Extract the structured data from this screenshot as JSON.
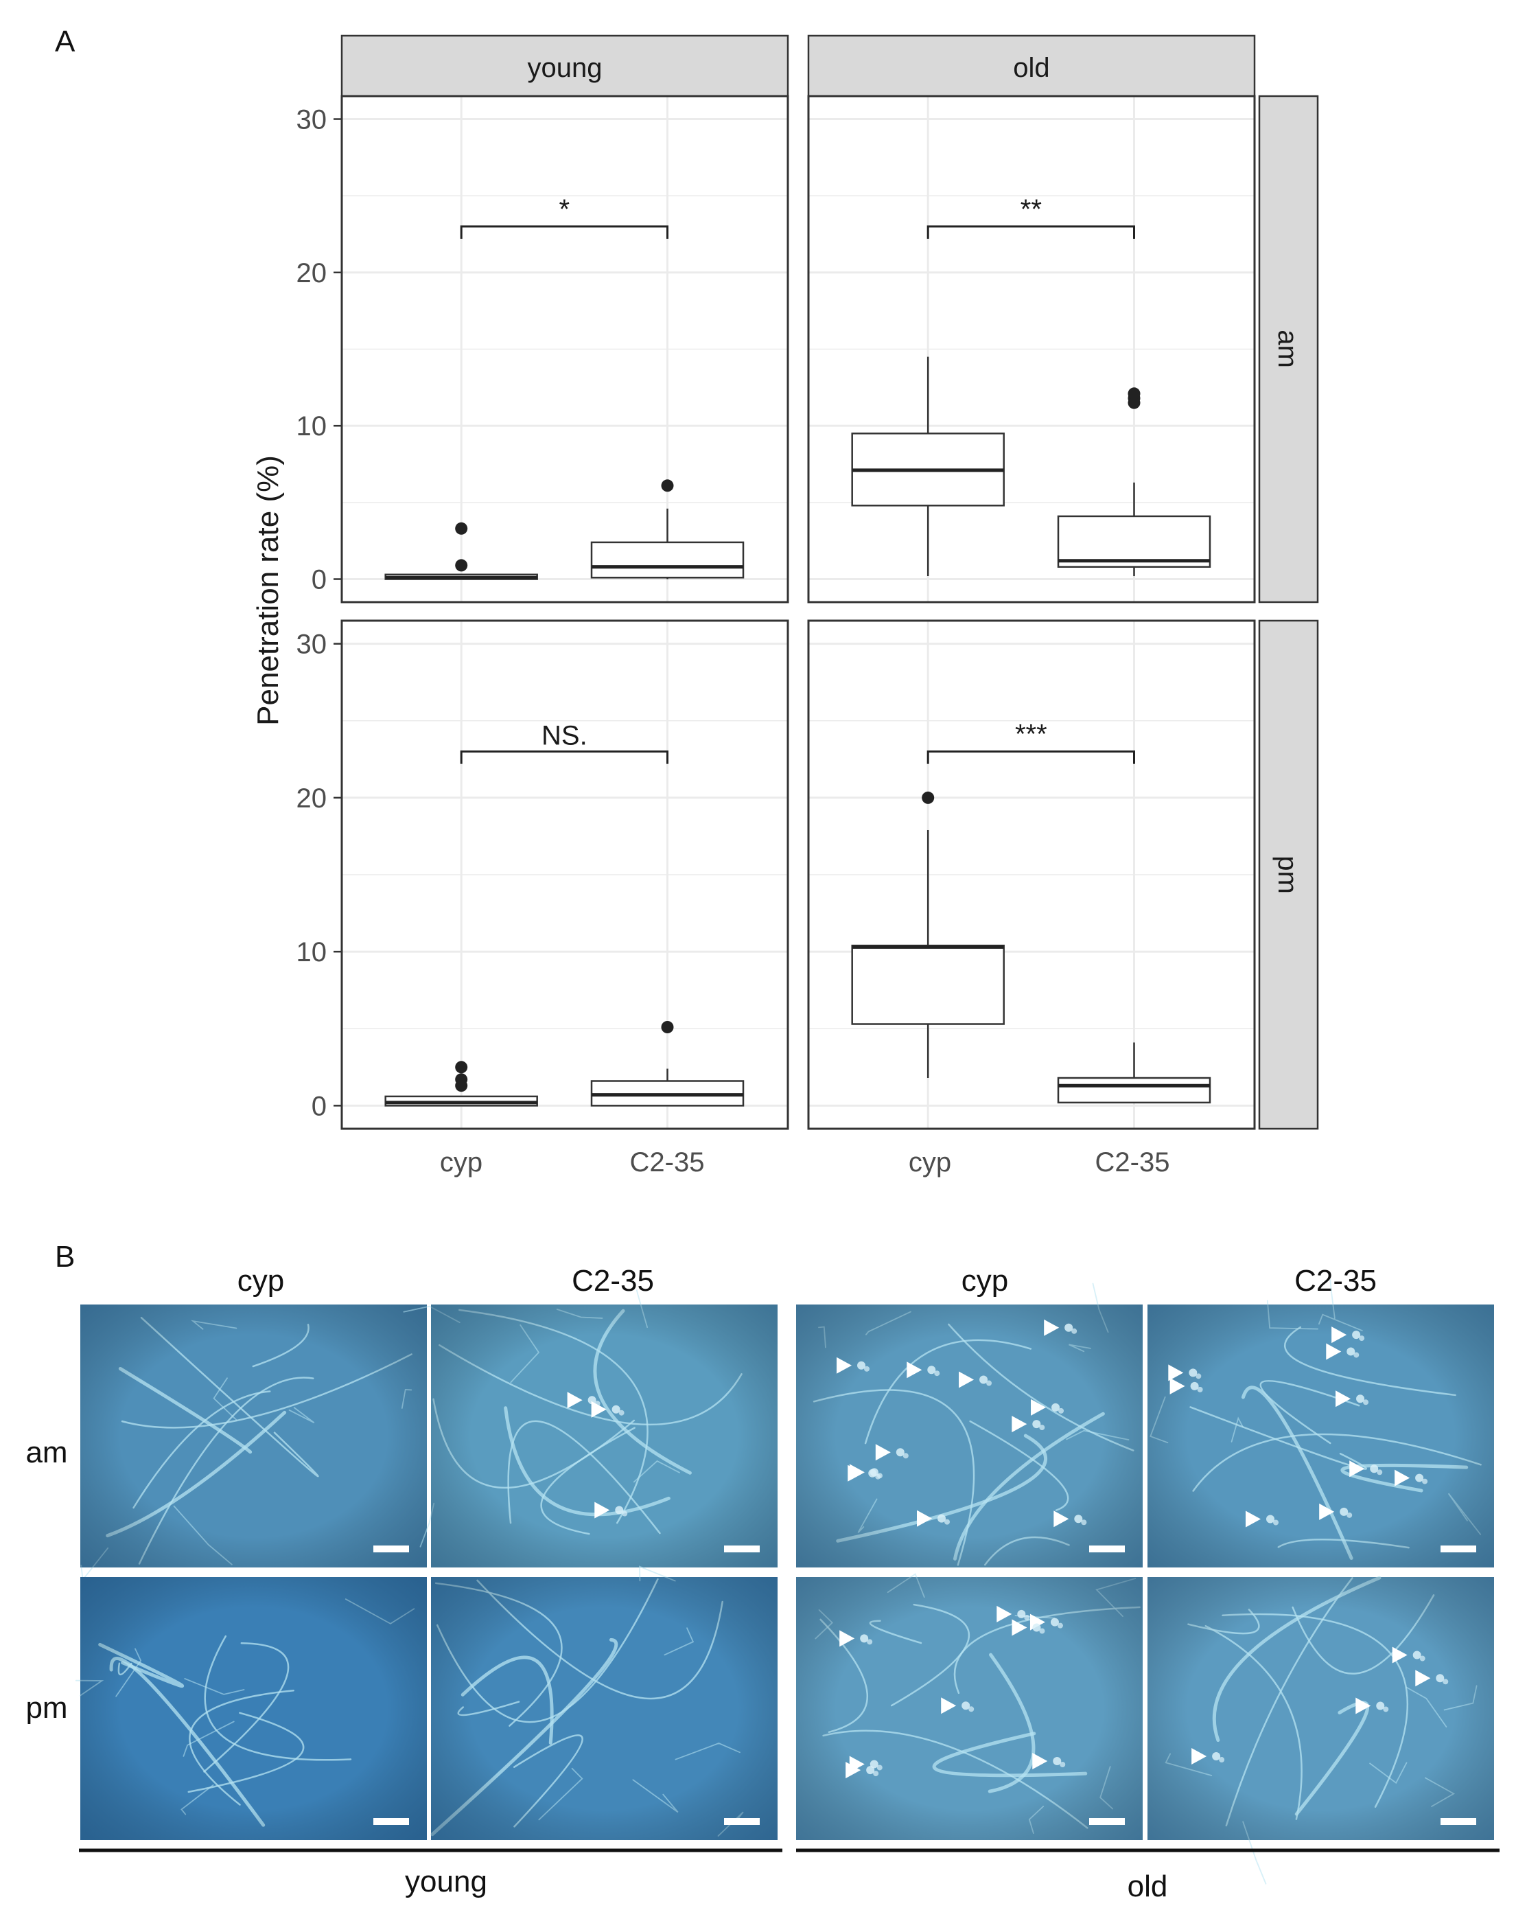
{
  "panel_a": {
    "label": "A",
    "col_facets": [
      "young",
      "old"
    ],
    "row_facets": [
      "am",
      "pm"
    ],
    "y_label": "Penetration rate (%)"
  },
  "panel_b": {
    "label": "B",
    "column_labels": [
      "cyp",
      "C2-35",
      "cyp",
      "C2-35"
    ],
    "row_labels": [
      "am",
      "pm"
    ],
    "group_labels": [
      "young",
      "old"
    ]
  },
  "chart_data": {
    "type": "box",
    "title": "",
    "xlabel": "",
    "ylabel": "Penetration rate (%)",
    "ylim": [
      -1.5,
      31.5
    ],
    "yticks": [
      0,
      10,
      20,
      30
    ],
    "categories": [
      "cyp",
      "C2-35"
    ],
    "facets": [
      {
        "col": "young",
        "row": "am",
        "significance": "*",
        "boxes": [
          {
            "group": "cyp",
            "min": 0,
            "q1": 0,
            "median": 0.1,
            "q3": 0.3,
            "max": 0.3,
            "outliers": [
              0.9,
              3.3
            ]
          },
          {
            "group": "C2-35",
            "min": 0,
            "q1": 0.1,
            "median": 0.8,
            "q3": 2.4,
            "max": 4.6,
            "outliers": [
              6.1
            ]
          }
        ]
      },
      {
        "col": "old",
        "row": "am",
        "significance": "**",
        "boxes": [
          {
            "group": "cyp",
            "min": 0.2,
            "q1": 4.8,
            "median": 7.1,
            "q3": 9.5,
            "max": 14.5,
            "outliers": []
          },
          {
            "group": "C2-35",
            "min": 0.2,
            "q1": 0.8,
            "median": 1.2,
            "q3": 4.1,
            "max": 6.3,
            "outliers": [
              11.5,
              11.8,
              12.1
            ]
          }
        ]
      },
      {
        "col": "young",
        "row": "pm",
        "significance": "NS.",
        "boxes": [
          {
            "group": "cyp",
            "min": 0,
            "q1": 0,
            "median": 0.2,
            "q3": 0.6,
            "max": 0.6,
            "outliers": [
              1.3,
              1.7,
              2.5
            ]
          },
          {
            "group": "C2-35",
            "min": 0,
            "q1": 0,
            "median": 0.7,
            "q3": 1.6,
            "max": 2.4,
            "outliers": [
              5.1
            ]
          }
        ]
      },
      {
        "col": "old",
        "row": "pm",
        "significance": "***",
        "boxes": [
          {
            "group": "cyp",
            "min": 1.8,
            "q1": 5.3,
            "median": 10.3,
            "q3": 10.4,
            "max": 17.9,
            "outliers": [
              20.0
            ]
          },
          {
            "group": "C2-35",
            "min": 0.2,
            "q1": 0.2,
            "median": 1.3,
            "q3": 1.8,
            "max": 4.1,
            "outliers": []
          }
        ]
      }
    ]
  },
  "micrographs": {
    "tiles": [
      {
        "row": "am",
        "col": "cyp",
        "group": "young",
        "tone": "#4f8fb8",
        "arrows": 0
      },
      {
        "row": "am",
        "col": "C2-35",
        "group": "young",
        "tone": "#5a9cbf",
        "arrows": 3
      },
      {
        "row": "am",
        "col": "cyp",
        "group": "old",
        "tone": "#5a99bd",
        "arrows": 11
      },
      {
        "row": "am",
        "col": "C2-35",
        "group": "old",
        "tone": "#5797bd",
        "arrows": 9
      },
      {
        "row": "pm",
        "col": "cyp",
        "group": "young",
        "tone": "#3a7fb5",
        "arrows": 0
      },
      {
        "row": "pm",
        "col": "C2-35",
        "group": "young",
        "tone": "#4387b8",
        "arrows": 0
      },
      {
        "row": "pm",
        "col": "cyp",
        "group": "old",
        "tone": "#5d9cc0",
        "arrows": 8
      },
      {
        "row": "pm",
        "col": "C2-35",
        "group": "old",
        "tone": "#5c9bc0",
        "arrows": 4
      }
    ]
  }
}
